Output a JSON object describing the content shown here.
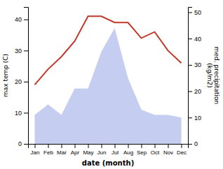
{
  "chart_data": {
    "type": "line",
    "xlabel": "date (month)",
    "ylabel": "max temp (C)",
    "y2label": "med. precipitation\n(kg/m2)",
    "categories": [
      "Jan",
      "Feb",
      "Mar",
      "Apr",
      "May",
      "Jun",
      "Jul",
      "Aug",
      "Sep",
      "Oct",
      "Nov",
      "Dec"
    ],
    "series": [
      {
        "type": "area",
        "axis": "y2",
        "color": "#c5cef0",
        "values": [
          11,
          15,
          11,
          21,
          21,
          35,
          44,
          25,
          13,
          11,
          11,
          10
        ]
      },
      {
        "type": "line",
        "color": "#c0392b",
        "values": [
          19,
          24,
          28,
          33,
          41,
          41,
          39,
          39,
          34,
          36,
          30,
          26
        ]
      }
    ],
    "ylim": [
      0,
      44
    ],
    "yticks": [
      0,
      10,
      20,
      30,
      40
    ],
    "y2lim": [
      0,
      52
    ],
    "y2ticks": [
      0,
      10,
      20,
      30,
      40,
      50
    ]
  }
}
